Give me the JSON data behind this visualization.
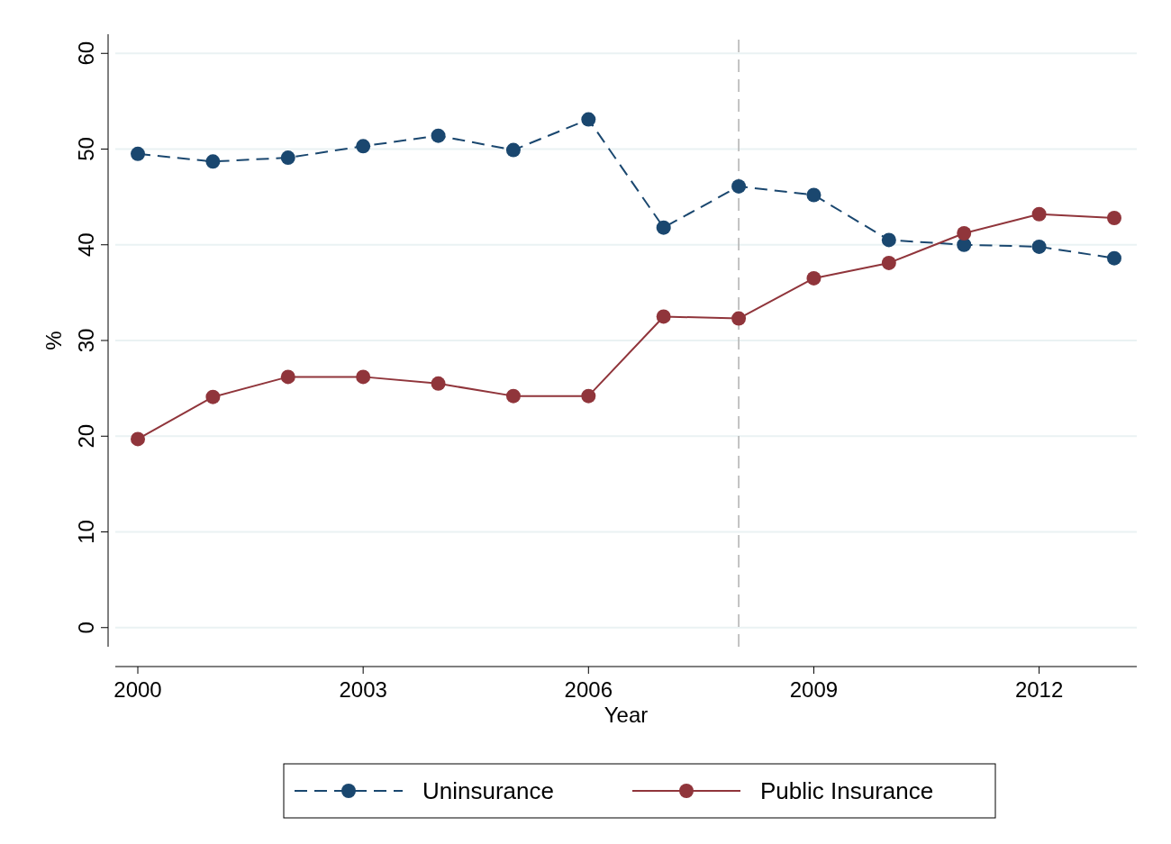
{
  "chart_data": {
    "type": "line",
    "xlabel": "Year",
    "ylabel": "%",
    "x": [
      2000,
      2001,
      2002,
      2003,
      2004,
      2005,
      2006,
      2007,
      2008,
      2009,
      2010,
      2011,
      2012,
      2013
    ],
    "series": [
      {
        "name": "Uninsurance",
        "color": "#1a476f",
        "line_style": "dashed",
        "values": [
          49.5,
          48.7,
          49.1,
          50.3,
          51.4,
          49.9,
          53.1,
          41.8,
          46.1,
          45.2,
          40.5,
          40.0,
          39.8,
          38.6
        ]
      },
      {
        "name": "Public Insurance",
        "color": "#90353b",
        "line_style": "solid",
        "values": [
          19.7,
          24.1,
          26.2,
          26.2,
          25.5,
          24.2,
          24.2,
          32.5,
          32.3,
          36.5,
          38.1,
          41.2,
          43.2,
          42.8
        ]
      }
    ],
    "xlim": [
      1999.7,
      2013.3
    ],
    "xticks": [
      2000,
      2003,
      2006,
      2009,
      2012
    ],
    "ylim": [
      -2,
      62
    ],
    "yticks": [
      0,
      10,
      20,
      30,
      40,
      50,
      60
    ],
    "grid": "y",
    "legend": "bottom",
    "marker": "circle",
    "ref_lines": [
      {
        "axis": "x",
        "value": 2008,
        "color": "#b0b0b0",
        "line_style": "dashed"
      }
    ]
  }
}
